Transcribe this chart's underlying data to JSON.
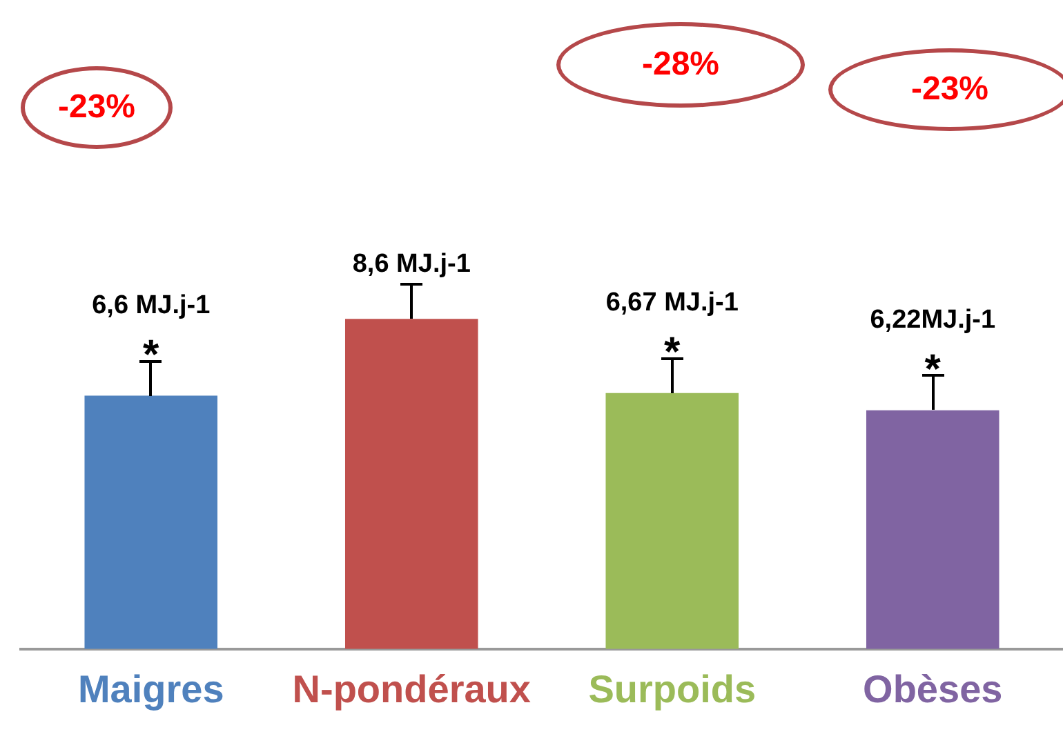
{
  "chart_data": {
    "type": "bar",
    "categories": [
      "Maigres",
      "N-pondéraux",
      "Surpoids",
      "Obèses"
    ],
    "values": [
      6.6,
      8.6,
      6.67,
      6.22
    ],
    "colors": [
      "#4f81bd",
      "#c0504d",
      "#9bbb59",
      "#8064a2"
    ],
    "value_labels": [
      "6,6 MJ.j-1",
      "8,6 MJ.j-1",
      "6,67 MJ.j-1",
      "6,22MJ.j-1"
    ],
    "annotations": [
      "-23%",
      "-28%",
      "-23%",
      "*",
      "*",
      "*"
    ],
    "grid": false,
    "legend": false
  }
}
